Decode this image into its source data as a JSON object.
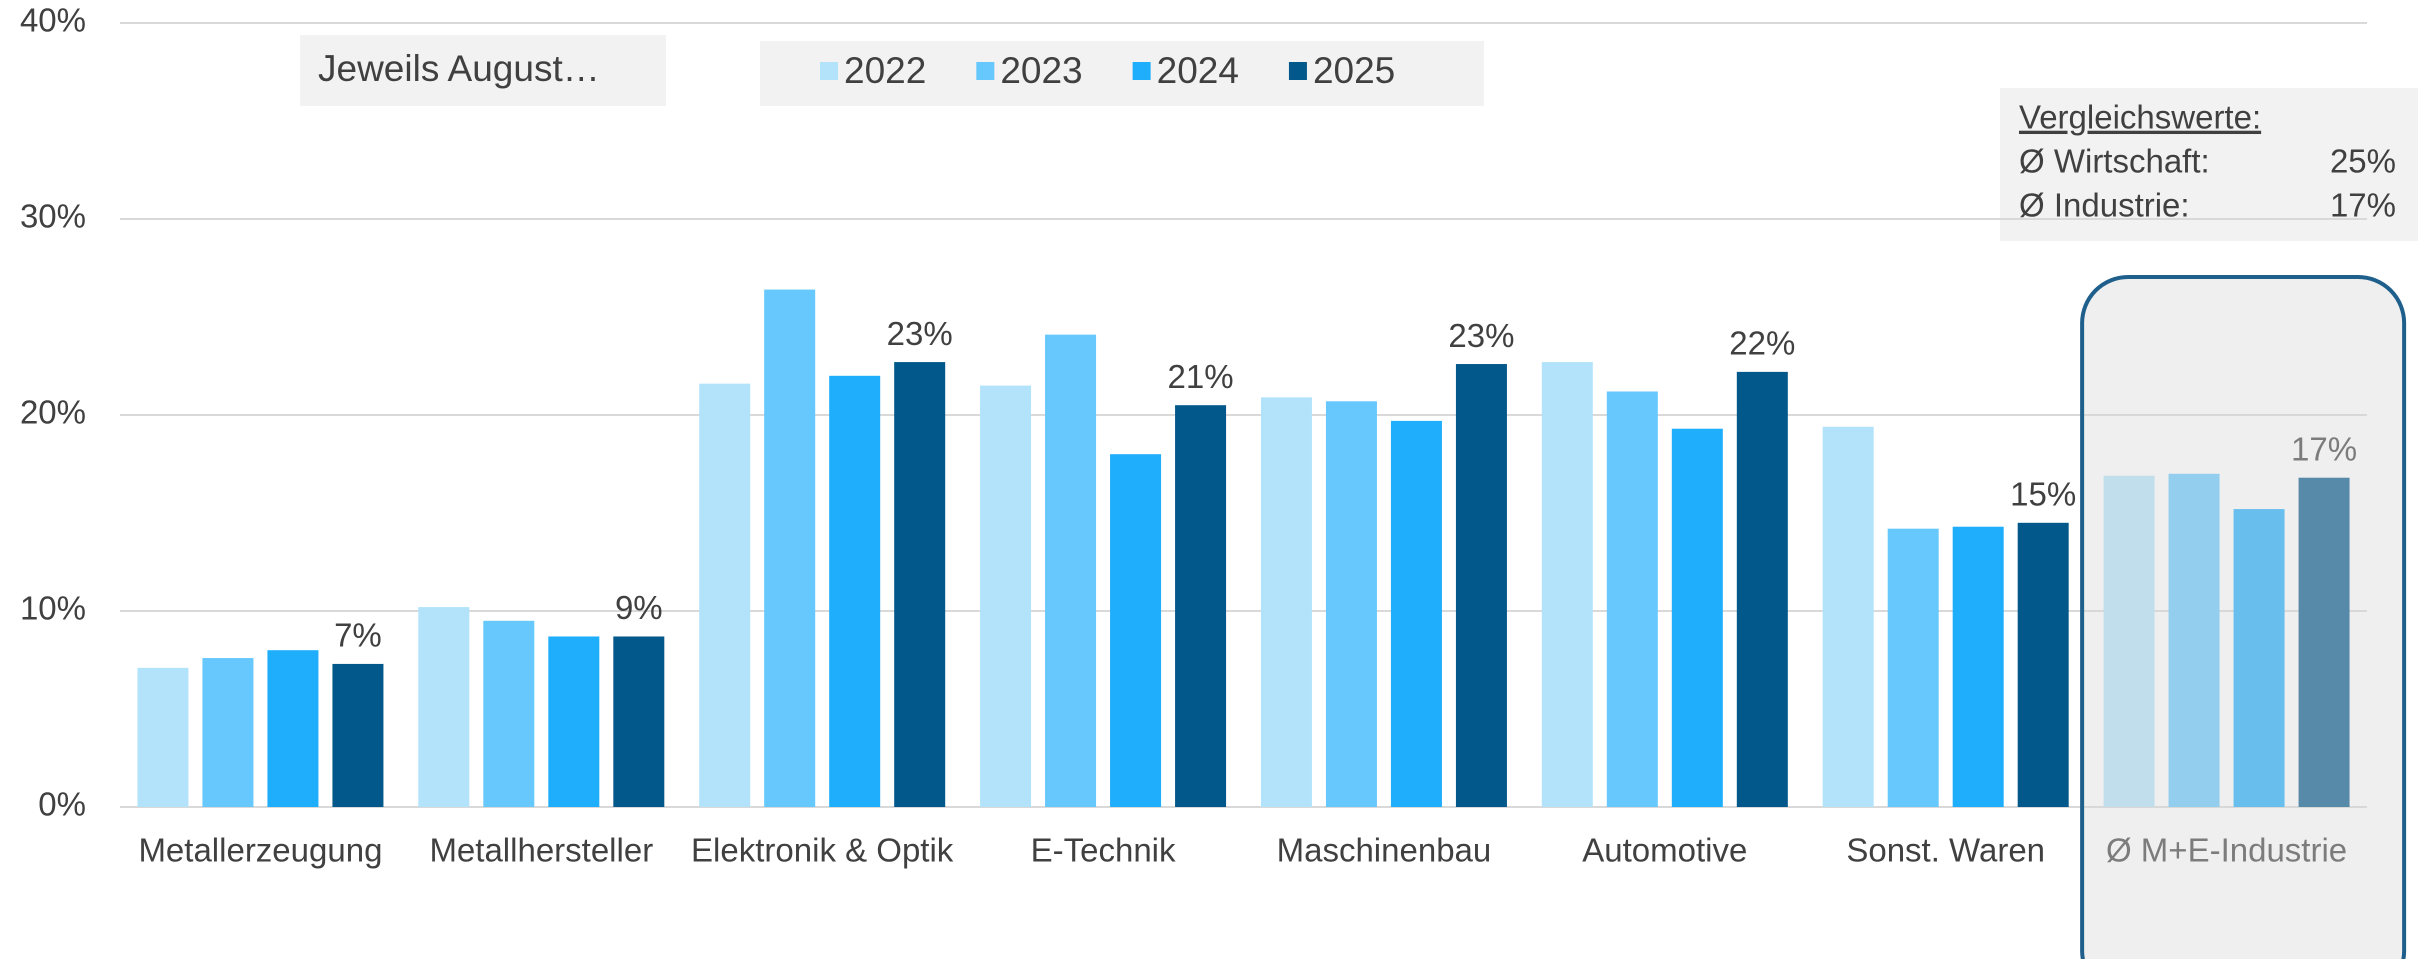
{
  "chart_data": {
    "type": "bar",
    "categories": [
      "Metallerzeugung",
      "Metallhersteller",
      "Elektronik & Optik",
      "E-Technik",
      "Maschinenbau",
      "Automotive",
      "Sonst. Waren",
      "Ø M+E-Industrie"
    ],
    "series": [
      {
        "name": "2022",
        "color": "#b3e3fb",
        "values": [
          7.1,
          10.2,
          21.6,
          21.5,
          20.9,
          22.7,
          19.4,
          16.9
        ]
      },
      {
        "name": "2023",
        "color": "#66c8fd",
        "values": [
          7.6,
          9.5,
          26.4,
          24.1,
          20.7,
          21.2,
          14.2,
          17.0
        ]
      },
      {
        "name": "2024",
        "color": "#1eaefc",
        "values": [
          8.0,
          8.7,
          22.0,
          18.0,
          19.7,
          19.3,
          14.3,
          15.2
        ]
      },
      {
        "name": "2025",
        "color": "#02588a",
        "values": [
          7.3,
          8.7,
          22.7,
          20.5,
          22.6,
          22.2,
          14.5,
          16.8
        ],
        "value_labels": [
          "7%",
          "9%",
          "23%",
          "21%",
          "23%",
          "22%",
          "15%",
          "17%"
        ]
      }
    ],
    "ylim": [
      0,
      40
    ],
    "yticks": [
      {
        "value": 0,
        "label": "0%"
      },
      {
        "value": 10,
        "label": "10%"
      },
      {
        "value": 20,
        "label": "20%"
      },
      {
        "value": 30,
        "label": "30%"
      },
      {
        "value": 40,
        "label": "40%"
      }
    ],
    "grid": true,
    "annotations": {
      "period": "Jeweils August…",
      "comparison": {
        "title": "Vergleichswerte:",
        "rows": [
          [
            "Ø Wirtschaft:",
            "25%"
          ],
          [
            "Ø Industrie:",
            "17%"
          ]
        ]
      }
    }
  }
}
